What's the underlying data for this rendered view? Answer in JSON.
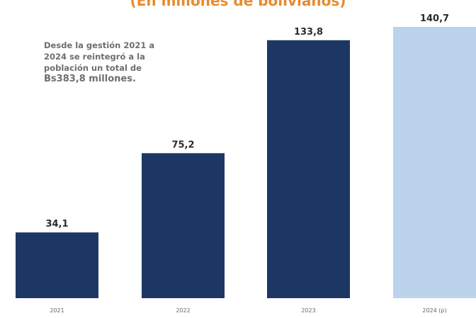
{
  "colors": {
    "subtitle": "#e88a2e",
    "bar_actual": "#1c3763",
    "bar_projected": "#bcd3ec",
    "value_label": "#2b2b2b",
    "tick_label": "#666666",
    "note_text": "#6e6e6e"
  },
  "subtitle": "(En millones de bolivianos)",
  "note": {
    "lines": [
      "Desde la gestión 2021 a",
      "2024 se reintegró a la",
      "población un total de",
      "Bs383,8 millones."
    ]
  },
  "chart_data": {
    "type": "bar",
    "categories": [
      "2021",
      "2022",
      "2023",
      "2024 (p)"
    ],
    "values": [
      34.1,
      75.2,
      133.8,
      140.7
    ],
    "value_labels": [
      "34,1",
      "75,2",
      "133,8",
      "140,7"
    ],
    "projected": [
      false,
      false,
      false,
      true
    ],
    "ylim": [
      0,
      140.7
    ],
    "grid": false,
    "legend": "none",
    "xlabel": "",
    "ylabel": ""
  }
}
